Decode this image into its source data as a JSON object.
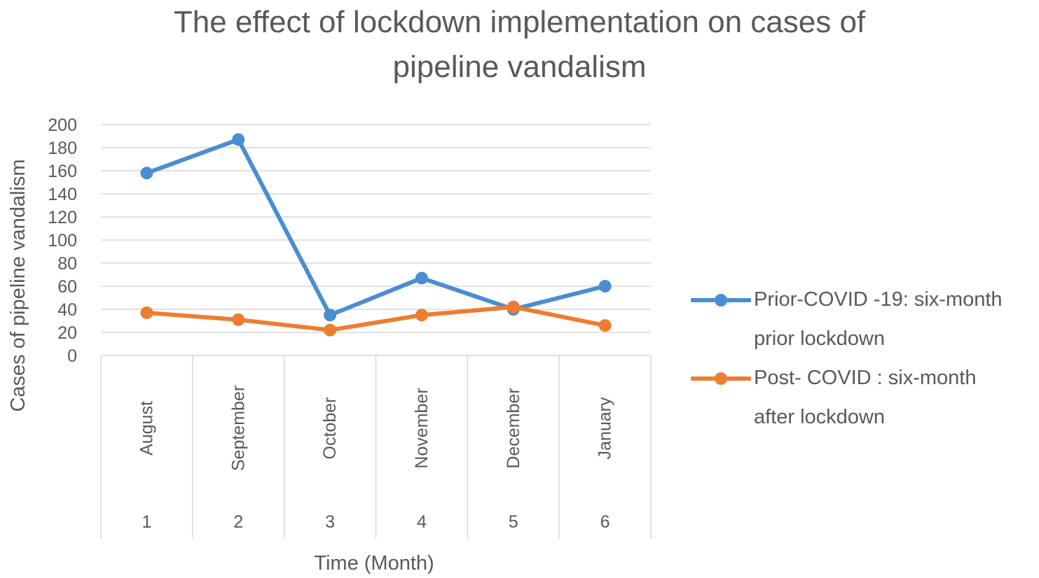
{
  "chart_data": {
    "type": "line",
    "title": "The effect of lockdown implementation on cases of pipeline vandalism",
    "title_lines": [
      "The effect of lockdown implementation on cases of",
      "pipeline vandalism"
    ],
    "xlabel": "Time (Month)",
    "ylabel": "Cases of pipeline vandalism",
    "categories": [
      {
        "month": "August",
        "index": "1"
      },
      {
        "month": "September",
        "index": "2"
      },
      {
        "month": "October",
        "index": "3"
      },
      {
        "month": "November",
        "index": "4"
      },
      {
        "month": "December",
        "index": "5"
      },
      {
        "month": "January",
        "index": "6"
      }
    ],
    "ylim": [
      0,
      200
    ],
    "yticks": [
      0,
      20,
      40,
      60,
      80,
      100,
      120,
      140,
      160,
      180,
      200
    ],
    "grid": true,
    "legend_position": "right",
    "series": [
      {
        "name": "Prior-COVID -19: six-month prior lockdown",
        "name_lines": [
          "Prior-COVID -19: six-month",
          "prior lockdown"
        ],
        "color": "#4a8ed2",
        "values": [
          158,
          187,
          35,
          67,
          40,
          60
        ]
      },
      {
        "name": "Post- COVID : six-month after lockdown",
        "name_lines": [
          "Post- COVID : six-month",
          "after lockdown"
        ],
        "color": "#ed7d31",
        "values": [
          37,
          31,
          22,
          35,
          42,
          26
        ]
      }
    ]
  }
}
